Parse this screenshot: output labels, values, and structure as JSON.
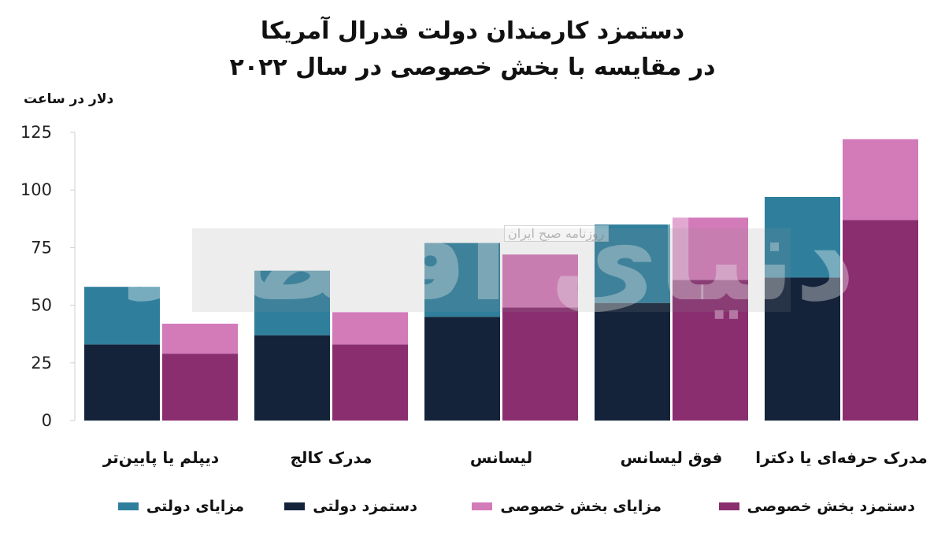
{
  "chart_data": {
    "type": "bar",
    "title": "دستمزد کارمندان دولت فدرال آمریکا",
    "subtitle": "در مقایسه با بخش خصوصی در سال ۲۰۲۲",
    "ylabel": "دلار در ساعت",
    "ylim": [
      0,
      125
    ],
    "yticks": [
      "0",
      "25",
      "50",
      "75",
      "100",
      "125"
    ],
    "categories": [
      "دیپلم یا پایین‌تر",
      "مدرک کالج",
      "لیسانس",
      "فوق لیسانس",
      "مدرک حرفه‌ای یا دکترا"
    ],
    "groups": [
      {
        "side": "government",
        "series": [
          {
            "name": "دستمزد دولتی",
            "values": [
              33,
              37,
              45,
              51,
              62
            ],
            "color": "#14233a"
          },
          {
            "name": "مزایای دولتی",
            "values": [
              25,
              28,
              32,
              34,
              35
            ],
            "color": "#2f7f9c"
          }
        ]
      },
      {
        "side": "private",
        "series": [
          {
            "name": "دستمزد بخش خصوصی",
            "values": [
              29,
              33,
              49,
              61,
              87
            ],
            "color": "#8a2e70"
          },
          {
            "name": "مزایای بخش خصوصی",
            "values": [
              13,
              14,
              23,
              27,
              35
            ],
            "color": "#d37ab8"
          }
        ]
      }
    ],
    "grid": false,
    "legend_position": "bottom"
  },
  "legend": [
    {
      "label": "دستمزد بخش خصوصی",
      "color": "#8a2e70"
    },
    {
      "label": "مزایای بخش خصوصی",
      "color": "#d37ab8"
    },
    {
      "label": "دستمزد دولتی",
      "color": "#14233a"
    },
    {
      "label": "مزایای دولتی",
      "color": "#2f7f9c"
    }
  ],
  "watermark": {
    "text": "دنیای اقتصاد",
    "tag": "روزنامه صبح ایران"
  }
}
